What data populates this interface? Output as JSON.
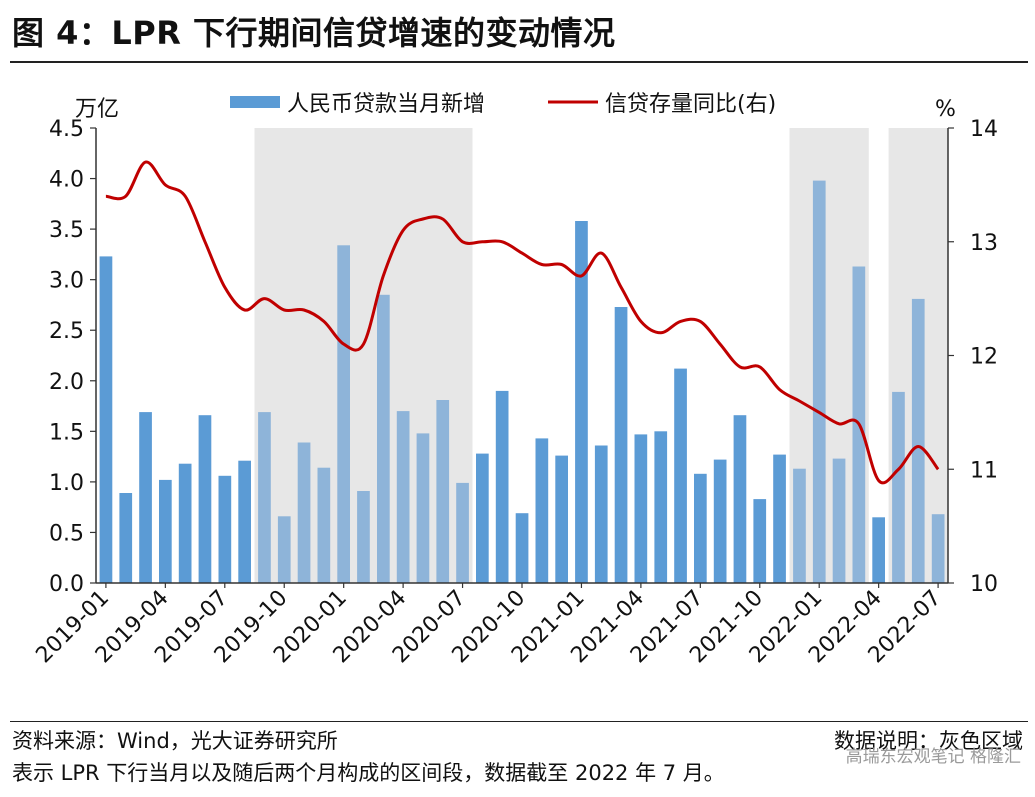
{
  "title": "图 4：LPR 下行期间信贷增速的变动情况",
  "footer": {
    "source": "资料来源：Wind，光大证券研究所",
    "note_label": "数据说明：灰色区域",
    "note_text": "表示 LPR 下行当月以及随后两个月构成的区间段，数据截至 2022 年 7 月。",
    "watermark": "高瑞东宏观笔记  格隆汇"
  },
  "chart_data": {
    "type": "bar+line",
    "legend": {
      "placement": "top-center",
      "bar_label": "人民币贷款当月新增",
      "line_label": "信贷存量同比(右)"
    },
    "y_left": {
      "unit": "万亿",
      "min": 0,
      "max": 4.5,
      "ticks": [
        "0.0",
        "0.5",
        "1.0",
        "1.5",
        "2.0",
        "2.5",
        "3.0",
        "3.5",
        "4.0",
        "4.5"
      ]
    },
    "y_right": {
      "unit": "%",
      "min": 10,
      "max": 14,
      "ticks": [
        "10",
        "11",
        "12",
        "13",
        "14"
      ]
    },
    "x_tick_labels": [
      "2019-01",
      "2019-04",
      "2019-07",
      "2019-10",
      "2020-01",
      "2020-04",
      "2020-07",
      "2020-10",
      "2021-01",
      "2021-04",
      "2021-07",
      "2021-10",
      "2022-01",
      "2022-04",
      "2022-07"
    ],
    "months": [
      "2019-01",
      "2019-02",
      "2019-03",
      "2019-04",
      "2019-05",
      "2019-06",
      "2019-07",
      "2019-08",
      "2019-09",
      "2019-10",
      "2019-11",
      "2019-12",
      "2020-01",
      "2020-02",
      "2020-03",
      "2020-04",
      "2020-05",
      "2020-06",
      "2020-07",
      "2020-08",
      "2020-09",
      "2020-10",
      "2020-11",
      "2020-12",
      "2021-01",
      "2021-02",
      "2021-03",
      "2021-04",
      "2021-05",
      "2021-06",
      "2021-07",
      "2021-08",
      "2021-09",
      "2021-10",
      "2021-11",
      "2021-12",
      "2022-01",
      "2022-02",
      "2022-03",
      "2022-04",
      "2022-05",
      "2022-06",
      "2022-07"
    ],
    "series": [
      {
        "name": "人民币贷款当月新增",
        "axis": "left",
        "type": "bar",
        "color": "#5b9bd5",
        "values": [
          3.23,
          0.89,
          1.69,
          1.02,
          1.18,
          1.66,
          1.06,
          1.21,
          1.69,
          0.66,
          1.39,
          1.14,
          3.34,
          0.91,
          2.85,
          1.7,
          1.48,
          1.81,
          0.99,
          1.28,
          1.9,
          0.69,
          1.43,
          1.26,
          3.58,
          1.36,
          2.73,
          1.47,
          1.5,
          2.12,
          1.08,
          1.22,
          1.66,
          0.83,
          1.27,
          1.13,
          3.98,
          1.23,
          3.13,
          0.65,
          1.89,
          2.81,
          0.68
        ]
      },
      {
        "name": "信贷存量同比(右)",
        "axis": "right",
        "type": "line",
        "color": "#c00000",
        "values": [
          13.4,
          13.4,
          13.7,
          13.5,
          13.4,
          13.0,
          12.6,
          12.4,
          12.5,
          12.4,
          12.4,
          12.3,
          12.1,
          12.1,
          12.7,
          13.1,
          13.2,
          13.2,
          13.0,
          13.0,
          13.0,
          12.9,
          12.8,
          12.8,
          12.7,
          12.9,
          12.6,
          12.3,
          12.2,
          12.3,
          12.3,
          12.1,
          11.9,
          11.9,
          11.7,
          11.6,
          11.5,
          11.4,
          11.4,
          10.9,
          11.0,
          11.2,
          11.0
        ]
      }
    ],
    "shaded_color": "#e7e7e7",
    "shaded_periods": [
      [
        "2019-09",
        "2020-07"
      ],
      [
        "2021-12",
        "2022-03"
      ],
      [
        "2022-05",
        "2022-07"
      ]
    ]
  }
}
